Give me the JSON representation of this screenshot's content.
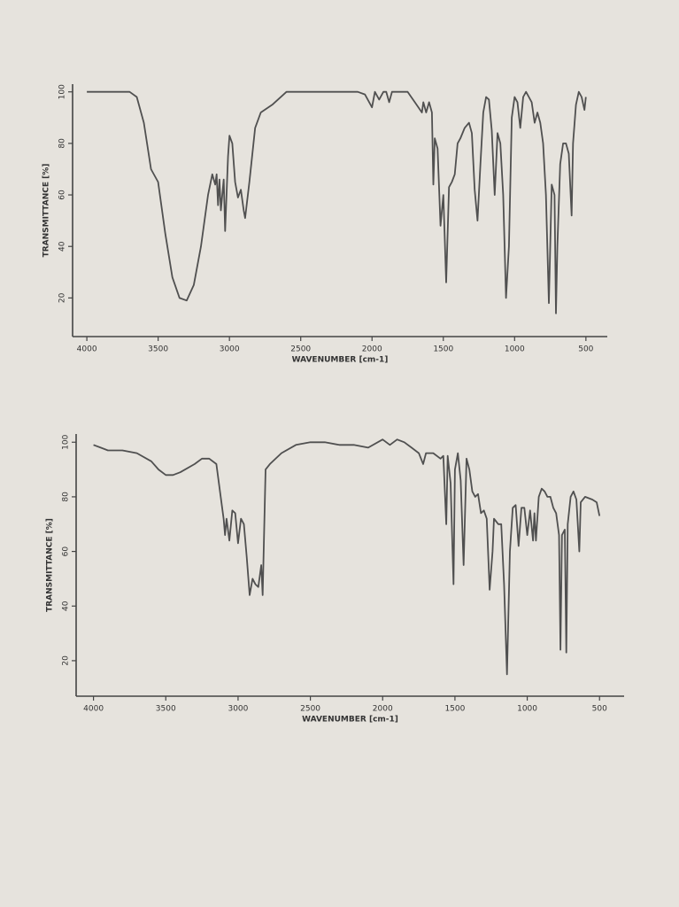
{
  "chart_data": [
    {
      "type": "line",
      "xlabel": "WAVENUMBER [cm-1]",
      "ylabel": "TRANSMITTANCE [%]",
      "color": "#505050",
      "xlim": [
        4100,
        350
      ],
      "ylim": [
        5,
        103
      ],
      "xticks": [
        4000,
        3500,
        3000,
        2500,
        2000,
        1500,
        1000,
        500
      ],
      "yticks": [
        20,
        40,
        60,
        80,
        100
      ],
      "x": [
        4000,
        3900,
        3700,
        3650,
        3600,
        3550,
        3500,
        3450,
        3400,
        3350,
        3300,
        3250,
        3200,
        3150,
        3120,
        3100,
        3090,
        3080,
        3070,
        3060,
        3040,
        3030,
        3010,
        3000,
        2980,
        2960,
        2940,
        2920,
        2900,
        2890,
        2860,
        2820,
        2780,
        2700,
        2600,
        2500,
        2400,
        2100,
        2050,
        2000,
        1980,
        1950,
        1920,
        1900,
        1880,
        1860,
        1800,
        1750,
        1700,
        1650,
        1640,
        1620,
        1600,
        1580,
        1570,
        1560,
        1540,
        1520,
        1500,
        1480,
        1460,
        1440,
        1420,
        1400,
        1380,
        1350,
        1320,
        1300,
        1280,
        1260,
        1240,
        1220,
        1200,
        1180,
        1160,
        1140,
        1120,
        1100,
        1080,
        1060,
        1040,
        1020,
        1000,
        980,
        960,
        940,
        920,
        900,
        880,
        860,
        840,
        820,
        800,
        780,
        760,
        740,
        720,
        710,
        700,
        680,
        660,
        640,
        620,
        600,
        590,
        570,
        550,
        530,
        510,
        500
      ],
      "values": [
        100,
        100,
        100,
        98,
        88,
        70,
        65,
        45,
        28,
        20,
        19,
        25,
        40,
        60,
        68,
        64,
        68,
        56,
        66,
        54,
        66,
        46,
        75,
        83,
        80,
        65,
        59,
        62,
        54,
        51,
        65,
        86,
        92,
        95,
        100,
        100,
        100,
        100,
        99,
        94,
        100,
        97,
        100,
        100,
        96,
        100,
        100,
        100,
        96,
        92,
        96,
        92,
        96,
        92,
        64,
        82,
        78,
        48,
        60,
        26,
        63,
        65,
        68,
        80,
        82,
        86,
        88,
        84,
        62,
        50,
        72,
        92,
        98,
        97,
        85,
        60,
        84,
        80,
        60,
        20,
        40,
        90,
        98,
        96,
        86,
        98,
        100,
        98,
        96,
        88,
        92,
        88,
        80,
        60,
        18,
        64,
        60,
        14,
        40,
        72,
        80,
        80,
        76,
        52,
        80,
        95,
        100,
        98,
        93,
        98
      ]
    },
    {
      "type": "line",
      "xlabel": "WAVENUMBER [cm-1]",
      "ylabel": "TRANSMITTANCE [%]",
      "color": "#505050",
      "xlim": [
        4120,
        330
      ],
      "ylim": [
        7,
        103
      ],
      "xticks": [
        4000,
        3500,
        3000,
        2500,
        2000,
        1500,
        1000,
        500
      ],
      "yticks": [
        20,
        40,
        60,
        80,
        100
      ],
      "x": [
        4000,
        3950,
        3900,
        3800,
        3700,
        3600,
        3550,
        3500,
        3450,
        3400,
        3300,
        3250,
        3200,
        3150,
        3120,
        3100,
        3090,
        3080,
        3060,
        3040,
        3020,
        3000,
        2980,
        2960,
        2940,
        2920,
        2900,
        2880,
        2860,
        2840,
        2830,
        2810,
        2780,
        2700,
        2600,
        2500,
        2400,
        2300,
        2200,
        2100,
        2000,
        1950,
        1900,
        1850,
        1800,
        1750,
        1720,
        1700,
        1650,
        1600,
        1580,
        1560,
        1550,
        1530,
        1510,
        1500,
        1480,
        1460,
        1440,
        1420,
        1400,
        1380,
        1360,
        1340,
        1320,
        1300,
        1280,
        1260,
        1240,
        1230,
        1200,
        1180,
        1160,
        1140,
        1120,
        1100,
        1080,
        1060,
        1040,
        1020,
        1000,
        980,
        960,
        950,
        940,
        920,
        900,
        880,
        860,
        840,
        820,
        800,
        780,
        770,
        760,
        740,
        730,
        720,
        700,
        680,
        660,
        640,
        630,
        600,
        550,
        520,
        500
      ],
      "values": [
        99,
        98,
        97,
        97,
        96,
        93,
        90,
        88,
        88,
        89,
        92,
        94,
        94,
        92,
        80,
        72,
        66,
        72,
        64,
        75,
        74,
        63,
        72,
        70,
        58,
        44,
        50,
        48,
        47,
        55,
        44,
        90,
        92,
        96,
        99,
        100,
        100,
        99,
        99,
        98,
        101,
        99,
        101,
        100,
        98,
        96,
        92,
        96,
        96,
        94,
        95,
        70,
        95,
        85,
        48,
        90,
        96,
        86,
        55,
        94,
        90,
        82,
        80,
        81,
        74,
        75,
        72,
        46,
        60,
        72,
        70,
        70,
        48,
        15,
        60,
        76,
        77,
        62,
        76,
        76,
        66,
        75,
        64,
        74,
        64,
        80,
        83,
        82,
        80,
        80,
        76,
        74,
        66,
        24,
        66,
        68,
        23,
        70,
        80,
        82,
        79,
        60,
        78,
        80,
        79,
        78,
        73
      ]
    }
  ]
}
